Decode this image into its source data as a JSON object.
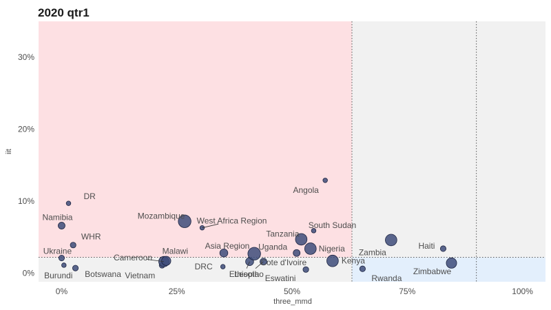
{
  "chart_data": {
    "type": "scatter",
    "title": "2020 qtr1",
    "xlabel": "three_mmd",
    "ylabel": "iit",
    "xlim": [
      -0.05,
      1.05
    ],
    "ylim": [
      -0.012,
      0.35
    ],
    "x_ticks": [
      0,
      0.25,
      0.5,
      0.75,
      1.0
    ],
    "x_tick_labels": [
      "0%",
      "25%",
      "50%",
      "75%",
      "100%"
    ],
    "y_ticks": [
      0,
      0.1,
      0.2,
      0.3
    ],
    "y_tick_labels": [
      "0%",
      "10%",
      "20%",
      "30%"
    ],
    "thresholds": {
      "x_low": 0.63,
      "x_high": 0.9,
      "y": 0.022
    },
    "region_colors": {
      "red_zone": "#fde0e3",
      "grey_zone": "#f1f1f1",
      "blue_zone": "#e3effc"
    },
    "point_color": "#3e4c7a",
    "points": [
      {
        "label": "DR",
        "x": 0.015,
        "y": 0.097,
        "size": 2
      },
      {
        "label": "Namibia",
        "x": 0.0,
        "y": 0.066,
        "size": 4
      },
      {
        "label": "WHR",
        "x": 0.025,
        "y": 0.039,
        "size": 3
      },
      {
        "label": "Ukraine",
        "x": 0.0,
        "y": 0.021,
        "size": 3
      },
      {
        "label": "Burundi",
        "x": 0.005,
        "y": 0.011,
        "size": 2
      },
      {
        "label": "Botswana",
        "x": 0.03,
        "y": 0.007,
        "size": 3
      },
      {
        "label": "Vietnam",
        "x": 0.218,
        "y": 0.011,
        "size": 3
      },
      {
        "label": "Cameroon",
        "x": 0.222,
        "y": 0.016,
        "size": 7
      },
      {
        "label": "Malawi",
        "x": 0.227,
        "y": 0.017,
        "size": 6
      },
      {
        "label": "Mozambique",
        "x": 0.267,
        "y": 0.072,
        "size": 9
      },
      {
        "label": "West Africa Region",
        "x": 0.305,
        "y": 0.063,
        "size": 2
      },
      {
        "label": "DRC",
        "x": 0.35,
        "y": 0.009,
        "size": 2
      },
      {
        "label": "Asia Region",
        "x": 0.352,
        "y": 0.028,
        "size": 5
      },
      {
        "label": "Ethiopia",
        "x": 0.408,
        "y": 0.016,
        "size": 5
      },
      {
        "label": "Uganda",
        "x": 0.418,
        "y": 0.027,
        "size": 9
      },
      {
        "label": "Lesotho",
        "x": 0.438,
        "y": 0.016,
        "size": 4
      },
      {
        "label": "Cote d'Ivoire",
        "x": 0.51,
        "y": 0.028,
        "size": 4
      },
      {
        "label": "Tanzania",
        "x": 0.52,
        "y": 0.047,
        "size": 8
      },
      {
        "label": "Eswatini",
        "x": 0.53,
        "y": 0.005,
        "size": 3
      },
      {
        "label": "Nigeria",
        "x": 0.54,
        "y": 0.034,
        "size": 8
      },
      {
        "label": "South Sudan",
        "x": 0.547,
        "y": 0.059,
        "size": 2
      },
      {
        "label": "Angola",
        "x": 0.572,
        "y": 0.129,
        "size": 2
      },
      {
        "label": "Kenya",
        "x": 0.588,
        "y": 0.017,
        "size": 8
      },
      {
        "label": "Rwanda",
        "x": 0.653,
        "y": 0.006,
        "size": 3
      },
      {
        "label": "Zambia",
        "x": 0.715,
        "y": 0.046,
        "size": 8
      },
      {
        "label": "Haiti",
        "x": 0.828,
        "y": 0.034,
        "size": 3
      },
      {
        "label": "Zimbabwe",
        "x": 0.846,
        "y": 0.014,
        "size": 7
      }
    ],
    "grid": false,
    "legend": "none"
  }
}
